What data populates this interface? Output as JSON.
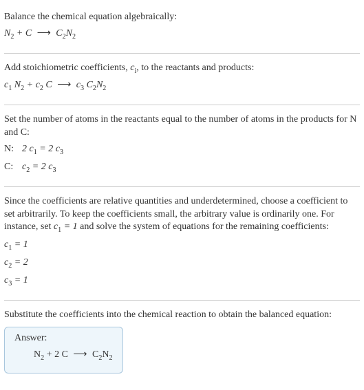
{
  "colors": {
    "text": "#333333",
    "divider": "#cccccc",
    "answer_bg": "#eef6fb",
    "answer_border": "#a8c6dd"
  },
  "typography": {
    "font_family": "Georgia, Times New Roman, serif",
    "font_size_pt": 10.5,
    "line_height": 1.35
  },
  "s1": {
    "t1": "Balance the chemical equation algebraically:",
    "eq": {
      "lhs_a": "N",
      "lhs_a_sub": "2",
      "plus": " + ",
      "lhs_b": "C",
      "arrow": "⟶",
      "rhs": "C",
      "rhs_sub1": "2",
      "rhs2": "N",
      "rhs_sub2": "2"
    }
  },
  "s2": {
    "t1_a": "Add stoichiometric coefficients, ",
    "t1_ci": "c",
    "t1_ci_sub": "i",
    "t1_b": ", to the reactants and products:",
    "eq": {
      "c1": "c",
      "c1_sub": "1",
      "sp1": " ",
      "a": "N",
      "a_sub": "2",
      "plus": " + ",
      "c2": "c",
      "c2_sub": "2",
      "sp2": " ",
      "b": "C",
      "arrow": "⟶",
      "c3": "c",
      "c3_sub": "3",
      "sp3": " ",
      "r1": "C",
      "r1_sub": "2",
      "r2": "N",
      "r2_sub": "2"
    }
  },
  "s3": {
    "t1": "Set the number of atoms in the reactants equal to the number of atoms in the products for N and C:",
    "rowN": {
      "label": "N:",
      "l_coef": "2 ",
      "l_c": "c",
      "l_sub": "1",
      "eq": " = ",
      "r_coef": "2 ",
      "r_c": "c",
      "r_sub": "3"
    },
    "rowC": {
      "label": "C:",
      "l_coef": "",
      "l_c": "c",
      "l_sub": "2",
      "eq": " = ",
      "r_coef": "2 ",
      "r_c": "c",
      "r_sub": "3"
    }
  },
  "s4": {
    "t1_a": "Since the coefficients are relative quantities and underdetermined, choose a coefficient to set arbitrarily. To keep the coefficients small, the arbitrary value is ordinarily one. For instance, set ",
    "t1_c": "c",
    "t1_c_sub": "1",
    "t1_eqv": " = 1",
    "t1_b": " and solve the system of equations for the remaining coefficients:",
    "r1": {
      "c": "c",
      "sub": "1",
      "rest": " = 1"
    },
    "r2": {
      "c": "c",
      "sub": "2",
      "rest": " = 2"
    },
    "r3": {
      "c": "c",
      "sub": "3",
      "rest": " = 1"
    }
  },
  "s5": {
    "t1": "Substitute the coefficients into the chemical reaction to obtain the balanced equation:",
    "answer_label": "Answer:",
    "eq": {
      "a": "N",
      "a_sub": "2",
      "plus": " + 2 ",
      "b": "C",
      "arrow": "⟶",
      "r1": "C",
      "r1_sub": "2",
      "r2": "N",
      "r2_sub": "2"
    }
  }
}
